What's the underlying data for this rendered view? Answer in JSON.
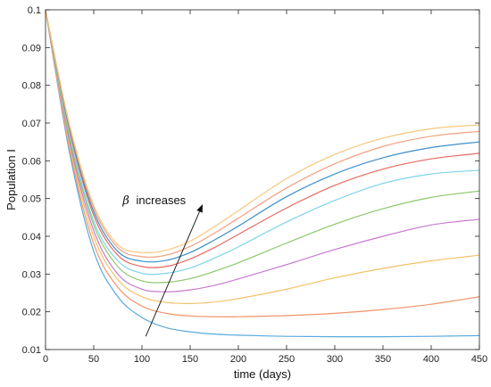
{
  "chart_data": {
    "type": "line",
    "xlabel": "time (days)",
    "ylabel": "Population I",
    "xlim": [
      0,
      450
    ],
    "ylim": [
      0.01,
      0.1
    ],
    "xticks": [
      "0",
      "50",
      "100",
      "150",
      "200",
      "250",
      "300",
      "350",
      "400",
      "450"
    ],
    "yticks": [
      "0.01",
      "0.02",
      "0.03",
      "0.04",
      "0.05",
      "0.06",
      "0.07",
      "0.08",
      "0.09",
      "0.1"
    ],
    "grid": false,
    "annotation": {
      "symbol": "β",
      "text": "increases",
      "arrow_from": [
        104,
        0.0135
      ],
      "arrow_to": [
        163,
        0.0485
      ]
    },
    "series": [
      {
        "color": "#5aa9de",
        "x": [
          0,
          25,
          50,
          75,
          100,
          125,
          150,
          175,
          200,
          250,
          300,
          350,
          400,
          450
        ],
        "y": [
          0.1,
          0.062,
          0.036,
          0.024,
          0.0185,
          0.0158,
          0.0147,
          0.0141,
          0.0138,
          0.0135,
          0.0134,
          0.0134,
          0.0135,
          0.0137
        ]
      },
      {
        "color": "#f0946a",
        "x": [
          0,
          25,
          50,
          75,
          100,
          125,
          150,
          175,
          200,
          250,
          300,
          350,
          400,
          450
        ],
        "y": [
          0.1,
          0.063,
          0.038,
          0.0265,
          0.0215,
          0.0196,
          0.0189,
          0.0187,
          0.0187,
          0.019,
          0.0196,
          0.0206,
          0.022,
          0.024
        ]
      },
      {
        "color": "#f4c26a",
        "x": [
          0,
          25,
          50,
          75,
          100,
          125,
          150,
          175,
          200,
          250,
          300,
          350,
          400,
          450
        ],
        "y": [
          0.1,
          0.064,
          0.04,
          0.0285,
          0.024,
          0.0225,
          0.0222,
          0.0226,
          0.0235,
          0.026,
          0.029,
          0.0315,
          0.0335,
          0.035
        ]
      },
      {
        "color": "#c77bcf",
        "x": [
          0,
          25,
          50,
          75,
          100,
          125,
          150,
          175,
          200,
          250,
          300,
          350,
          400,
          450
        ],
        "y": [
          0.1,
          0.065,
          0.0415,
          0.03,
          0.026,
          0.0253,
          0.0258,
          0.027,
          0.0287,
          0.0325,
          0.0365,
          0.04,
          0.043,
          0.0445
        ]
      },
      {
        "color": "#8cc76a",
        "x": [
          0,
          25,
          50,
          75,
          100,
          125,
          150,
          175,
          200,
          250,
          300,
          350,
          400,
          450
        ],
        "y": [
          0.1,
          0.066,
          0.043,
          0.032,
          0.0282,
          0.0278,
          0.0288,
          0.0307,
          0.033,
          0.0382,
          0.0432,
          0.0473,
          0.0503,
          0.052
        ]
      },
      {
        "color": "#7fd4ea",
        "x": [
          0,
          25,
          50,
          75,
          100,
          125,
          150,
          175,
          200,
          250,
          300,
          350,
          400,
          450
        ],
        "y": [
          0.1,
          0.067,
          0.044,
          0.0335,
          0.0302,
          0.0302,
          0.0316,
          0.0342,
          0.0372,
          0.0438,
          0.0495,
          0.054,
          0.0565,
          0.0575
        ]
      },
      {
        "color": "#e86a62",
        "x": [
          0,
          25,
          50,
          75,
          100,
          125,
          150,
          175,
          200,
          250,
          300,
          350,
          400,
          450
        ],
        "y": [
          0.1,
          0.068,
          0.0455,
          0.035,
          0.032,
          0.032,
          0.034,
          0.037,
          0.0405,
          0.0475,
          0.0535,
          0.0578,
          0.0605,
          0.062
        ]
      },
      {
        "color": "#3c8fcc",
        "x": [
          0,
          25,
          50,
          75,
          100,
          125,
          150,
          175,
          200,
          250,
          300,
          350,
          400,
          450
        ],
        "y": [
          0.1,
          0.0685,
          0.0465,
          0.036,
          0.0334,
          0.0336,
          0.0357,
          0.039,
          0.0427,
          0.0505,
          0.0565,
          0.0608,
          0.0635,
          0.065
        ]
      },
      {
        "color": "#f3a081",
        "x": [
          0,
          25,
          50,
          75,
          100,
          125,
          150,
          175,
          200,
          250,
          300,
          350,
          400,
          450
        ],
        "y": [
          0.1,
          0.069,
          0.0475,
          0.037,
          0.0346,
          0.035,
          0.0373,
          0.0408,
          0.0448,
          0.0528,
          0.0592,
          0.0638,
          0.0665,
          0.0678
        ]
      },
      {
        "color": "#f6c77c",
        "x": [
          0,
          25,
          50,
          75,
          100,
          125,
          150,
          175,
          200,
          250,
          300,
          350,
          400,
          450
        ],
        "y": [
          0.1,
          0.0695,
          0.0482,
          0.0378,
          0.0357,
          0.0363,
          0.0387,
          0.0425,
          0.0468,
          0.0553,
          0.0617,
          0.066,
          0.0685,
          0.0695
        ]
      }
    ]
  }
}
